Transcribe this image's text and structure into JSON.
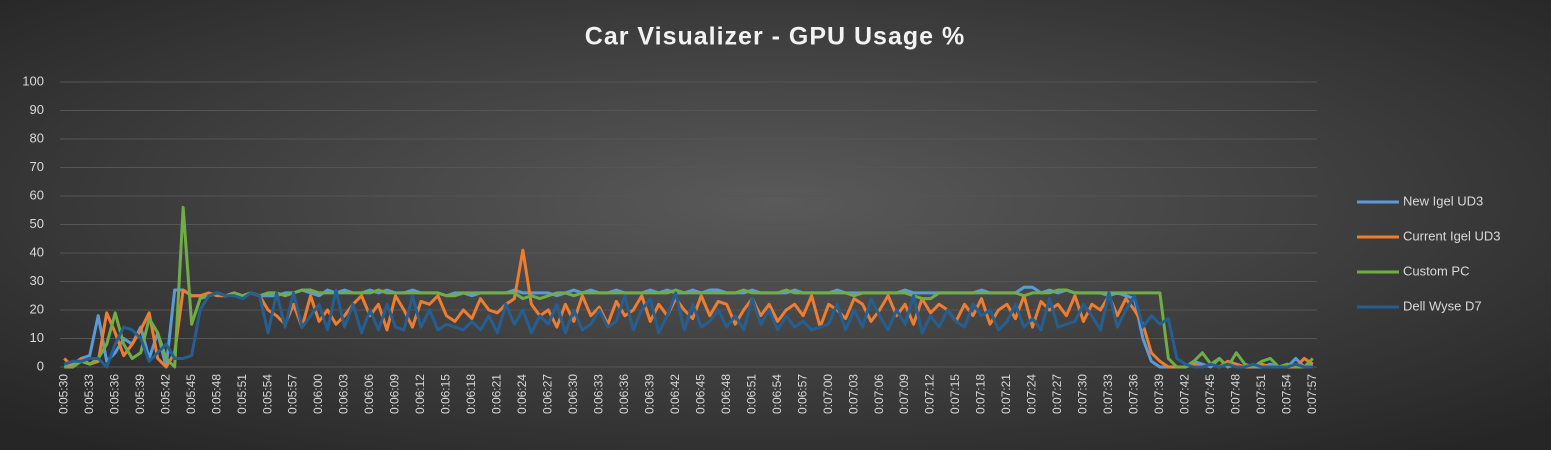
{
  "chart_data": {
    "type": "line",
    "title": "Car Visualizer - GPU Usage %",
    "categories": [
      "0:05:30",
      null,
      null,
      "0:05:33",
      null,
      null,
      "0:05:36",
      null,
      null,
      "0:05:39",
      null,
      null,
      "0:05:42",
      null,
      null,
      "0:05:45",
      null,
      null,
      "0:05:48",
      null,
      null,
      "0:05:51",
      null,
      null,
      "0:05:54",
      null,
      null,
      "0:05:57",
      null,
      null,
      "0:06:00",
      null,
      null,
      "0:06:03",
      null,
      null,
      "0:06:06",
      null,
      null,
      "0:06:09",
      null,
      null,
      "0:06:12",
      null,
      null,
      "0:06:15",
      null,
      null,
      "0:06:18",
      null,
      null,
      "0:06:21",
      null,
      null,
      "0:06:24",
      null,
      null,
      "0:06:27",
      null,
      null,
      "0:06:30",
      null,
      null,
      "0:06:33",
      null,
      null,
      "0:06:36",
      null,
      null,
      "0:06:39",
      null,
      null,
      "0:06:42",
      null,
      null,
      "0:06:45",
      null,
      null,
      "0:06:48",
      null,
      null,
      "0:06:51",
      null,
      null,
      "0:06:54",
      null,
      null,
      "0:06:57",
      null,
      null,
      "0:07:00",
      null,
      null,
      "0:07:03",
      null,
      null,
      "0:07:06",
      null,
      null,
      "0:07:09",
      null,
      null,
      "0:07:12",
      null,
      null,
      "0:07:15",
      null,
      null,
      "0:07:18",
      null,
      null,
      "0:07:21",
      null,
      null,
      "0:07:24",
      null,
      null,
      "0:07:27",
      null,
      null,
      "0:07:30",
      null,
      null,
      "0:07:33",
      null,
      null,
      "0:07:36",
      null,
      null,
      "0:07:39",
      null,
      null,
      "0:07:42",
      null,
      null,
      "0:07:45",
      null,
      null,
      "0:07:48",
      null,
      null,
      "0:07:51",
      null,
      null,
      "0:07:54",
      null,
      null,
      "0:07:57"
    ],
    "series": [
      {
        "name": "New Igel UD3",
        "color": "#5b9bd5",
        "values": [
          0,
          1,
          3,
          4,
          18,
          2,
          5,
          10,
          8,
          14,
          3,
          12,
          0,
          27,
          27,
          25,
          25,
          25,
          26,
          25,
          26,
          25,
          26,
          25,
          25,
          25,
          26,
          26,
          27,
          26,
          25,
          27,
          26,
          27,
          26,
          26,
          27,
          26,
          27,
          26,
          26,
          27,
          26,
          26,
          26,
          25,
          26,
          26,
          25,
          26,
          26,
          26,
          26,
          27,
          26,
          26,
          26,
          26,
          25,
          26,
          27,
          26,
          27,
          26,
          26,
          27,
          26,
          26,
          26,
          27,
          26,
          27,
          26,
          26,
          27,
          26,
          27,
          27,
          26,
          26,
          26,
          27,
          26,
          26,
          26,
          26,
          27,
          26,
          26,
          26,
          26,
          27,
          26,
          26,
          26,
          26,
          26,
          26,
          26,
          27,
          26,
          26,
          26,
          26,
          26,
          26,
          26,
          26,
          27,
          26,
          26,
          26,
          26,
          28,
          28,
          26,
          27,
          26,
          27,
          26,
          26,
          26,
          26,
          25,
          26,
          25,
          24,
          10,
          2,
          0,
          0,
          0,
          0,
          2,
          1,
          0,
          3,
          0,
          1,
          0,
          0,
          0,
          1,
          0,
          0,
          3,
          0,
          1
        ]
      },
      {
        "name": "Current Igel UD3",
        "color": "#ed7d31",
        "values": [
          3,
          0,
          3,
          1,
          2,
          19,
          12,
          4,
          8,
          13,
          19,
          3,
          0,
          5,
          27,
          25,
          25,
          26,
          25,
          25,
          26,
          25,
          26,
          25,
          20,
          18,
          15,
          22,
          14,
          25,
          16,
          20,
          15,
          18,
          22,
          25,
          18,
          22,
          13,
          25,
          20,
          14,
          23,
          22,
          25,
          18,
          16,
          20,
          17,
          24,
          20,
          19,
          22,
          24,
          41,
          22,
          18,
          20,
          14,
          22,
          16,
          25,
          18,
          21,
          15,
          23,
          18,
          20,
          25,
          16,
          22,
          18,
          24,
          20,
          17,
          25,
          18,
          23,
          22,
          15,
          20,
          24,
          18,
          22,
          16,
          20,
          22,
          18,
          25,
          14,
          22,
          20,
          17,
          24,
          22,
          16,
          20,
          25,
          18,
          22,
          15,
          24,
          19,
          22,
          20,
          16,
          22,
          18,
          24,
          15,
          20,
          22,
          17,
          25,
          14,
          23,
          20,
          22,
          18,
          25,
          16,
          22,
          20,
          25,
          18,
          24,
          20,
          15,
          5,
          2,
          0,
          0,
          0,
          1,
          0,
          1,
          0,
          2,
          1,
          0,
          0,
          1,
          0,
          0,
          0,
          0,
          3,
          1
        ]
      },
      {
        "name": "Custom PC",
        "color": "#70ad47",
        "values": [
          0,
          0,
          2,
          1,
          3,
          8,
          19,
          8,
          3,
          5,
          17,
          12,
          3,
          0,
          56,
          15,
          24,
          25,
          26,
          25,
          26,
          25,
          26,
          25,
          26,
          26,
          25,
          26,
          27,
          27,
          26,
          26,
          26,
          26,
          26,
          26,
          26,
          27,
          26,
          26,
          26,
          26,
          26,
          26,
          26,
          25,
          25,
          26,
          26,
          26,
          26,
          26,
          26,
          26,
          24,
          25,
          24,
          25,
          26,
          26,
          25,
          26,
          26,
          26,
          26,
          26,
          26,
          26,
          26,
          26,
          26,
          26,
          27,
          26,
          26,
          26,
          26,
          26,
          26,
          26,
          27,
          26,
          26,
          26,
          26,
          27,
          26,
          26,
          26,
          26,
          26,
          26,
          26,
          25,
          26,
          26,
          26,
          26,
          26,
          26,
          25,
          24,
          24,
          26,
          26,
          26,
          26,
          26,
          26,
          26,
          26,
          26,
          26,
          25,
          26,
          26,
          26,
          27,
          27,
          26,
          26,
          26,
          26,
          26,
          26,
          26,
          26,
          26,
          26,
          26,
          3,
          0,
          0,
          2,
          5,
          1,
          3,
          0,
          5,
          1,
          0,
          2,
          3,
          0,
          1,
          0,
          0,
          3
        ]
      },
      {
        "name": "Dell Wyse D7",
        "color": "#255e91",
        "values": [
          1,
          2,
          2,
          3,
          3,
          0,
          8,
          14,
          13,
          10,
          2,
          5,
          8,
          3,
          3,
          4,
          20,
          25,
          26,
          25,
          25,
          24,
          26,
          25,
          12,
          26,
          14,
          26,
          14,
          18,
          22,
          13,
          27,
          14,
          22,
          12,
          20,
          13,
          22,
          14,
          13,
          25,
          14,
          20,
          13,
          15,
          14,
          13,
          16,
          13,
          18,
          12,
          22,
          15,
          20,
          12,
          18,
          15,
          22,
          12,
          20,
          13,
          15,
          20,
          14,
          16,
          25,
          13,
          20,
          24,
          12,
          18,
          26,
          13,
          22,
          14,
          16,
          20,
          14,
          18,
          13,
          24,
          15,
          20,
          13,
          18,
          14,
          16,
          13,
          14,
          15,
          22,
          13,
          20,
          14,
          24,
          18,
          13,
          20,
          15,
          25,
          12,
          18,
          14,
          20,
          16,
          14,
          22,
          18,
          20,
          13,
          16,
          22,
          14,
          17,
          13,
          24,
          14,
          15,
          16,
          22,
          18,
          13,
          26,
          14,
          20,
          25,
          14,
          18,
          15,
          17,
          3,
          1,
          0,
          0,
          1,
          0,
          1,
          0,
          0,
          1,
          0,
          0,
          0,
          0,
          1,
          0,
          0
        ]
      }
    ],
    "ylim": [
      0,
      100
    ],
    "yticks": [
      0,
      10,
      20,
      30,
      40,
      50,
      60,
      70,
      80,
      90,
      100
    ],
    "grid": true,
    "legend": "right"
  }
}
